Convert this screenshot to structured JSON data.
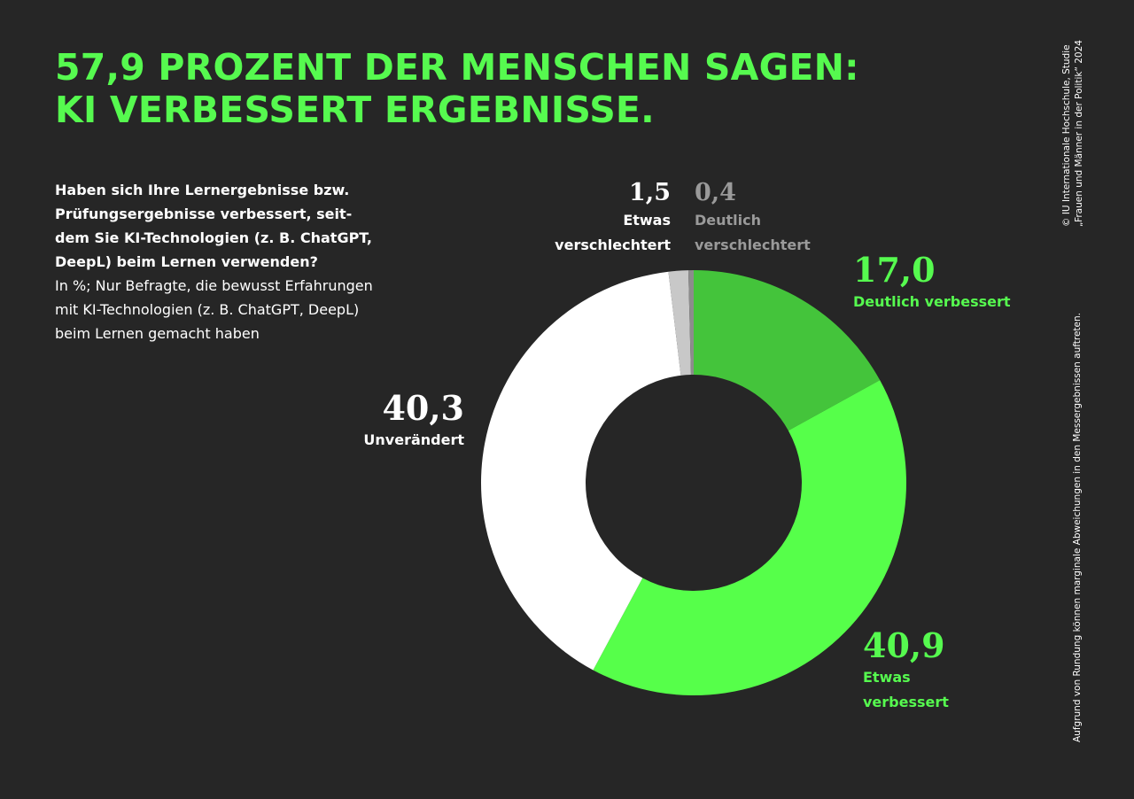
{
  "headline": {
    "line1": "57,9 PROZENT DER MENSCHEN SAGEN:",
    "line2": "KI VERBESSERT ERGEBNISSE."
  },
  "question": {
    "text": "Haben sich Ihre Lernergebnisse bzw. Prüfungsergebnisse verbessert, seit-dem Sie KI-Technologien (z. B. ChatGPT, DeepL) beim Lernen verwenden?",
    "note": "In %; Nur Befragte, die bewusst Erfahrungen mit KI-Technologien (z. B. ChatGPT, DeepL) beim Lernen gemacht haben"
  },
  "source": {
    "line1": "© IU Internationale Hochschule, Studie",
    "line2": "„Frauen und Männer in der Politik“ 2024"
  },
  "footnote": "Aufgrund von Rundung können marginale Abweichungen in den Messergebnissen auftreten.",
  "chart_data": {
    "type": "pie",
    "variant": "donut",
    "unit": "%",
    "slices": [
      {
        "label": "Deutlich verbessert",
        "label_lines": [
          "Deutlich verbessert"
        ],
        "value": 17.0,
        "display": "17,0",
        "color": "#44c43b",
        "text_color": "#56fa4f"
      },
      {
        "label": "Etwas verbessert",
        "label_lines": [
          "Etwas",
          "verbessert"
        ],
        "value": 40.9,
        "display": "40,9",
        "color": "#56ff4a",
        "text_color": "#56fa4f"
      },
      {
        "label": "Unverändert",
        "label_lines": [
          "Unverändert"
        ],
        "value": 40.3,
        "display": "40,3",
        "color": "#ffffff",
        "text_color": "#ffffff"
      },
      {
        "label": "Etwas verschlechtert",
        "label_lines": [
          "Etwas",
          "verschlechtert"
        ],
        "value": 1.5,
        "display": "1,5",
        "color": "#c8c8c8",
        "text_color": "#ffffff"
      },
      {
        "label": "Deutlich verschlechtert",
        "label_lines": [
          "Deutlich",
          "verschlechtert"
        ],
        "value": 0.4,
        "display": "0,4",
        "color": "#8c8c8c",
        "text_color": "#9a9a9a"
      }
    ]
  }
}
